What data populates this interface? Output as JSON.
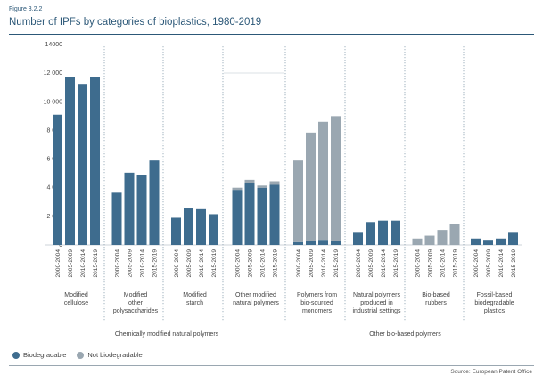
{
  "header": {
    "figure_label": "Figure 3.2.2",
    "title": "Number of IPFs by categories of bioplastics, 1980-2019"
  },
  "legend": {
    "items": [
      {
        "label": "Biodegradable",
        "color": "#3e6c8e"
      },
      {
        "label": "Not biodegradable",
        "color": "#9aa7b1"
      }
    ]
  },
  "source": "Source: European Patent Office",
  "chart_data": {
    "type": "bar",
    "stacked": true,
    "ylim": [
      0,
      14000
    ],
    "yticks": [
      0,
      2000,
      4000,
      6000,
      8000,
      10000,
      12000,
      14000
    ],
    "ytick_labels": [
      "0",
      "2 000",
      "4 000",
      "6 000",
      "8 000",
      "10 000",
      "12 000",
      "14000"
    ],
    "periods": [
      "2000-2004",
      "2005-2009",
      "2010-2014",
      "2015-2019"
    ],
    "groups": [
      {
        "label": "Modified cellulose",
        "label_lines": [
          "Modified",
          "cellulose"
        ],
        "biodegradable": [
          9100,
          11700,
          11250,
          11700
        ],
        "not_biodegradable": [
          0,
          0,
          0,
          0
        ]
      },
      {
        "label": "Modified other polysaccharides",
        "label_lines": [
          "Modified",
          "other",
          "polysaccharides"
        ],
        "biodegradable": [
          3650,
          5050,
          4900,
          5900
        ],
        "not_biodegradable": [
          0,
          0,
          0,
          0
        ]
      },
      {
        "label": "Modified starch",
        "label_lines": [
          "Modified",
          "starch"
        ],
        "biodegradable": [
          1900,
          2550,
          2500,
          2150
        ],
        "not_biodegradable": [
          0,
          0,
          0,
          0
        ]
      },
      {
        "label": "Other modified natural polymers",
        "label_lines": [
          "Other modified",
          "natural polymers"
        ],
        "biodegradable": [
          3850,
          4300,
          4000,
          4200
        ],
        "not_biodegradable": [
          150,
          250,
          150,
          250
        ]
      },
      {
        "label": "Polymers from bio-sourced monomers",
        "label_lines": [
          "Polymers from",
          "bio-sourced",
          "monomers"
        ],
        "biodegradable": [
          200,
          250,
          300,
          250
        ],
        "not_biodegradable": [
          5700,
          7600,
          8300,
          8750
        ]
      },
      {
        "label": "Natural polymers produced in industrial settings",
        "label_lines": [
          "Natural polymers",
          "produced in",
          "industrial settings"
        ],
        "biodegradable": [
          850,
          1600,
          1700,
          1700
        ],
        "not_biodegradable": [
          0,
          0,
          0,
          0
        ]
      },
      {
        "label": "Bio-based rubbers",
        "label_lines": [
          "Bio-based",
          "rubbers"
        ],
        "biodegradable": [
          0,
          0,
          0,
          0
        ],
        "not_biodegradable": [
          450,
          650,
          1050,
          1450
        ]
      },
      {
        "label": "Fossil-based biodegradable plastics",
        "label_lines": [
          "Fossil-based",
          "biodegradable",
          "plastics"
        ],
        "biodegradable": [
          450,
          300,
          450,
          850
        ],
        "not_biodegradable": [
          0,
          0,
          0,
          0
        ]
      }
    ],
    "supergroups": [
      {
        "label": "Chemically modified natural polymers",
        "groups": [
          0,
          1,
          2,
          3
        ]
      },
      {
        "label": "Other bio-based polymers",
        "groups": [
          4,
          5,
          6,
          7
        ]
      }
    ],
    "colors": {
      "biodegradable": "#3e6c8e",
      "not_biodegradable": "#9aa7b1"
    }
  }
}
